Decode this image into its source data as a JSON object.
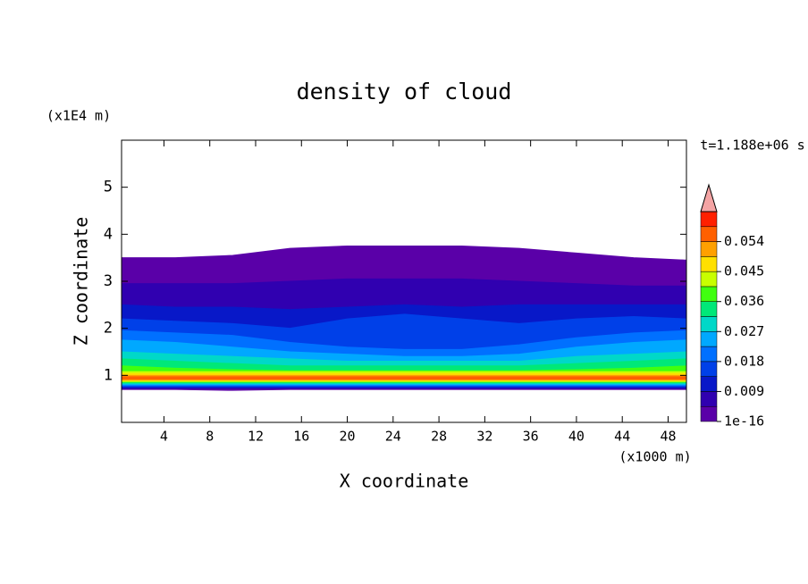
{
  "chart_data": {
    "type": "contour",
    "title": "density of cloud",
    "x_label": "X coordinate",
    "x_unit": "(x1000 m)",
    "y_label": "Z coordinate",
    "y_unit": "(x1E4 m)",
    "time_label": "t=1.188e+06 s",
    "xlim": [
      0.3,
      49.6
    ],
    "xticks": [
      4,
      8,
      12,
      16,
      20,
      24,
      28,
      32,
      36,
      40,
      44,
      48
    ],
    "ylim": [
      0,
      6
    ],
    "yticks": [
      1,
      2,
      3,
      4,
      5
    ],
    "levels": [
      1e-16,
      0.0045,
      0.009,
      0.0135,
      0.018,
      0.0225,
      0.027,
      0.0315,
      0.036,
      0.0405,
      0.045,
      0.0495,
      0.054,
      0.0585,
      0.063
    ],
    "colors": [
      "#5a00a8",
      "#3000b0",
      "#0818c8",
      "#0040e8",
      "#0070ff",
      "#00a8ff",
      "#00d8c8",
      "#00e878",
      "#40ff10",
      "#c8ff00",
      "#ffe000",
      "#ffa000",
      "#ff6000",
      "#ff2000"
    ],
    "extend_color": "#f4a4a4",
    "colorbar_ticks": [
      {
        "value": 1e-16,
        "label": "1e-16"
      },
      0.009,
      0.018,
      0.027,
      0.036,
      0.045,
      0.054
    ],
    "x": [
      0.3,
      5,
      10,
      15,
      20,
      25,
      30,
      35,
      40,
      45,
      49.6
    ],
    "regions": [
      {
        "value": 1e-16,
        "top": [
          3.5,
          3.5,
          3.55,
          3.7,
          3.75,
          3.75,
          3.75,
          3.7,
          3.6,
          3.5,
          3.45
        ],
        "bottom": [
          0.7,
          0.7,
          0.68,
          0.7,
          0.7,
          0.7,
          0.7,
          0.7,
          0.7,
          0.7,
          0.7
        ]
      },
      {
        "value": 0.0045,
        "top": [
          2.95,
          2.95,
          2.95,
          3.0,
          3.05,
          3.05,
          3.05,
          3.0,
          2.95,
          2.9,
          2.9
        ],
        "bottom": [
          0.72,
          0.72,
          0.72,
          0.72,
          0.72,
          0.72,
          0.72,
          0.72,
          0.72,
          0.72,
          0.72
        ]
      },
      {
        "value": 0.009,
        "top": [
          2.5,
          2.45,
          2.45,
          2.4,
          2.45,
          2.5,
          2.45,
          2.5,
          2.5,
          2.5,
          2.5
        ],
        "bottom": [
          0.74,
          0.74,
          0.74,
          0.74,
          0.74,
          0.74,
          0.74,
          0.74,
          0.74,
          0.74,
          0.74
        ]
      },
      {
        "value": 0.0135,
        "top": [
          2.2,
          2.15,
          2.1,
          2.0,
          2.2,
          2.3,
          2.2,
          2.1,
          2.2,
          2.25,
          2.2
        ],
        "bottom": [
          0.76,
          0.76,
          0.76,
          0.76,
          0.76,
          0.76,
          0.76,
          0.76,
          0.76,
          0.76,
          0.76
        ]
      },
      {
        "value": 0.018,
        "top": [
          1.95,
          1.9,
          1.85,
          1.7,
          1.6,
          1.55,
          1.55,
          1.65,
          1.8,
          1.9,
          1.95
        ],
        "bottom": [
          0.78,
          0.78,
          0.78,
          0.78,
          0.78,
          0.78,
          0.78,
          0.78,
          0.78,
          0.78,
          0.78
        ]
      },
      {
        "value": 0.0225,
        "top": [
          1.75,
          1.7,
          1.6,
          1.5,
          1.45,
          1.4,
          1.4,
          1.45,
          1.6,
          1.7,
          1.75
        ],
        "bottom": [
          0.8,
          0.8,
          0.8,
          0.8,
          0.8,
          0.8,
          0.8,
          0.8,
          0.8,
          0.8,
          0.8
        ]
      },
      {
        "value": 0.027,
        "top": [
          1.5,
          1.45,
          1.4,
          1.35,
          1.3,
          1.3,
          1.3,
          1.3,
          1.4,
          1.45,
          1.5
        ],
        "bottom": [
          0.82,
          0.82,
          0.82,
          0.82,
          0.82,
          0.82,
          0.82,
          0.82,
          0.82,
          0.82,
          0.82
        ]
      },
      {
        "value": 0.0315,
        "top": [
          1.35,
          1.3,
          1.25,
          1.2,
          1.2,
          1.2,
          1.2,
          1.2,
          1.25,
          1.3,
          1.35
        ],
        "bottom": [
          0.84,
          0.84,
          0.84,
          0.84,
          0.84,
          0.84,
          0.84,
          0.84,
          0.84,
          0.84,
          0.84
        ]
      },
      {
        "value": 0.036,
        "top": [
          1.2,
          1.15,
          1.12,
          1.1,
          1.1,
          1.1,
          1.1,
          1.1,
          1.12,
          1.15,
          1.2
        ],
        "bottom": [
          0.86,
          0.86,
          0.86,
          0.86,
          0.86,
          0.86,
          0.86,
          0.86,
          0.86,
          0.86,
          0.86
        ]
      },
      {
        "value": 0.0405,
        "top": [
          1.08,
          1.08,
          1.08,
          1.08,
          1.08,
          1.08,
          1.08,
          1.08,
          1.08,
          1.08,
          1.08
        ],
        "bottom": [
          0.87,
          0.87,
          0.87,
          0.87,
          0.87,
          0.87,
          0.87,
          0.87,
          0.87,
          0.87,
          0.87
        ]
      },
      {
        "value": 0.045,
        "top": [
          1.04,
          1.04,
          1.04,
          1.04,
          1.04,
          1.04,
          1.04,
          1.04,
          1.04,
          1.04,
          1.04
        ],
        "bottom": [
          0.88,
          0.88,
          0.88,
          0.88,
          0.88,
          0.88,
          0.88,
          0.88,
          0.88,
          0.88,
          0.88
        ]
      },
      {
        "value": 0.0495,
        "top": [
          1.0,
          1.0,
          1.0,
          1.0,
          1.0,
          1.0,
          1.0,
          1.0,
          1.0,
          1.0,
          1.0
        ],
        "bottom": [
          0.9,
          0.9,
          0.9,
          0.9,
          0.9,
          0.9,
          0.9,
          0.9,
          0.9,
          0.9,
          0.9
        ]
      },
      {
        "value": 0.054,
        "top": [
          0.97,
          0.97,
          0.97,
          0.97,
          0.97,
          0.97,
          0.97,
          0.97,
          0.97,
          0.97,
          0.97
        ],
        "bottom": [
          0.92,
          0.92,
          0.92,
          0.92,
          0.92,
          0.92,
          0.92,
          0.92,
          0.92,
          0.92,
          0.92
        ]
      }
    ]
  }
}
